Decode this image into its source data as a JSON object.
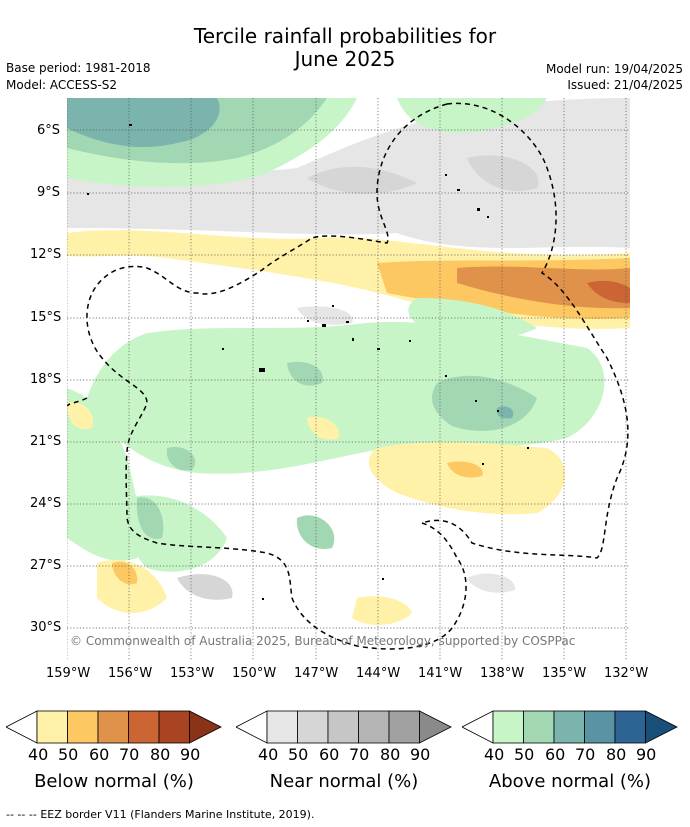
{
  "title_line1": "Tercile rainfall probabilities for",
  "title_line2": "June 2025",
  "base_period": "Base period: 1981-2018",
  "model": "Model: ACCESS-S2",
  "model_run": "Model run: 19/04/2025",
  "issued": "Issued: 21/04/2025",
  "copyright": "© Commonwealth of Australia 2025, Bureau of Meteorology, supported by COSPPac",
  "lat_ticks": [
    "6°S",
    "9°S",
    "12°S",
    "15°S",
    "18°S",
    "21°S",
    "24°S",
    "27°S",
    "30°S"
  ],
  "lon_ticks": [
    "159°W",
    "156°W",
    "153°W",
    "150°W",
    "147°W",
    "144°W",
    "141°W",
    "138°W",
    "135°W",
    "132°W"
  ],
  "colorbars": {
    "below": {
      "title": "Below normal (%)",
      "ticks": [
        "40",
        "50",
        "60",
        "70",
        "80",
        "90"
      ],
      "colors": [
        "#fff2a8",
        "#fdc862",
        "#e0924a",
        "#cc6433",
        "#a84422",
        "#8a3318"
      ]
    },
    "near": {
      "title": "Near normal (%)",
      "ticks": [
        "40",
        "50",
        "60",
        "70",
        "80",
        "90"
      ],
      "colors": [
        "#e6e6e6",
        "#d6d6d6",
        "#c6c6c6",
        "#b4b4b4",
        "#a0a0a0",
        "#8a8a8a"
      ]
    },
    "above": {
      "title": "Above normal (%)",
      "ticks": [
        "40",
        "50",
        "60",
        "70",
        "80",
        "90"
      ],
      "colors": [
        "#c8f5c8",
        "#a2d7b4",
        "#7ab4ac",
        "#5a94a4",
        "#2e6494",
        "#1a4f7a"
      ]
    }
  },
  "legend": {
    "symbol": "-- -- --",
    "label": "EEZ border V11 (Flanders Marine Institute, 2019)."
  }
}
